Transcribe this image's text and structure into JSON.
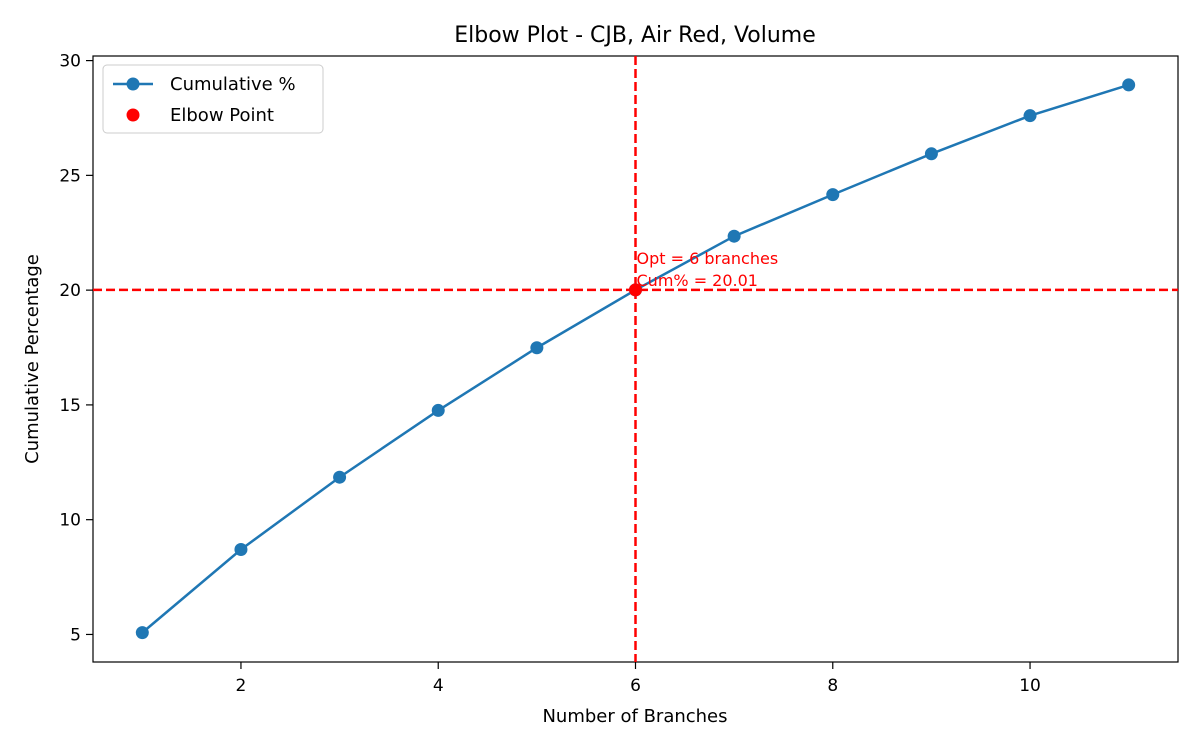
{
  "chart_data": {
    "type": "line",
    "title": "Elbow Plot - CJB, Air Red, Volume",
    "xlabel": "Number of Branches",
    "ylabel": "Cumulative Percentage",
    "xlim": [
      0.5,
      11.5
    ],
    "ylim": [
      3.8,
      30.2
    ],
    "xticks": [
      2,
      4,
      6,
      8,
      10
    ],
    "yticks": [
      5,
      10,
      15,
      20,
      25,
      30
    ],
    "grid": false,
    "legend_placement": "top-left",
    "series": [
      {
        "name": "Cumulative %",
        "color": "#1f77b4",
        "marker": "circle",
        "x": [
          1,
          2,
          3,
          4,
          5,
          6,
          7,
          8,
          9,
          10,
          11
        ],
        "y": [
          5.08,
          8.7,
          11.85,
          14.76,
          17.49,
          20.01,
          22.35,
          24.16,
          25.94,
          27.6,
          28.94
        ]
      }
    ],
    "elbow_point": {
      "name": "Elbow Point",
      "x": 6,
      "y": 20.01,
      "color": "#ff0000"
    },
    "reference_lines": {
      "vertical_x": 6,
      "horizontal_y": 20.01,
      "color": "#ff0000",
      "style": "dashed"
    },
    "annotation": {
      "lines": [
        "Opt = 6 branches",
        "Cum% = 20.01"
      ],
      "color": "#ff0000"
    }
  }
}
